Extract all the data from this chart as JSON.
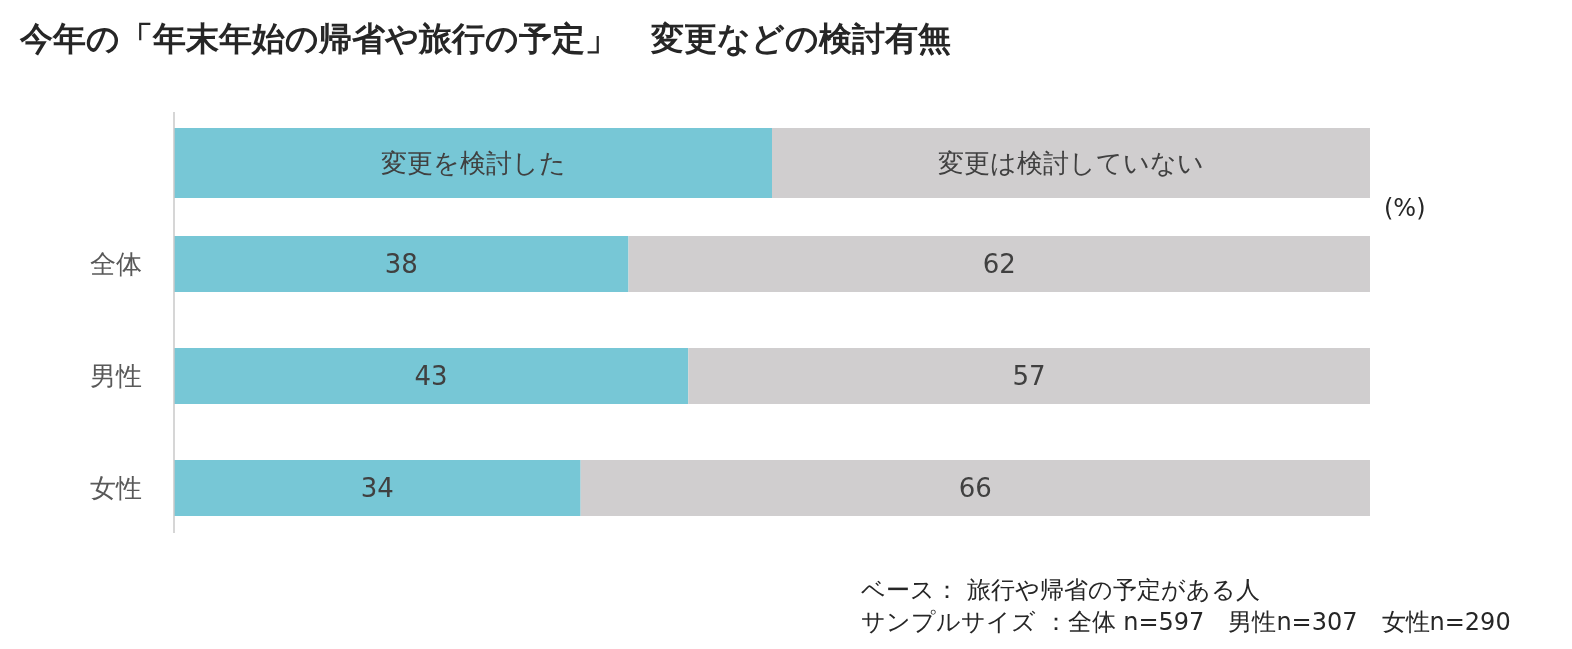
{
  "chart_data": {
    "type": "bar",
    "orientation": "horizontal",
    "stacked": true,
    "title": "今年の「年末年始の帰省や旅行の予定」　変更などの検討有無",
    "categories": [
      "全体",
      "男性",
      "女性"
    ],
    "series": [
      {
        "name": "変更を検討した",
        "color": "#77c7d6",
        "values": [
          38,
          43,
          34
        ]
      },
      {
        "name": "変更は検討していない",
        "color": "#d0cecf",
        "values": [
          62,
          57,
          66
        ]
      }
    ],
    "xlim": [
      0,
      100
    ],
    "tick_labels": "y",
    "data_labels": true,
    "legend": "top",
    "annotations": [
      "(%)",
      "ベース： 旅行や帰省の予定がある人",
      "サンプルサイズ ：全体 n=597　男性n=307　女性n=290"
    ]
  }
}
